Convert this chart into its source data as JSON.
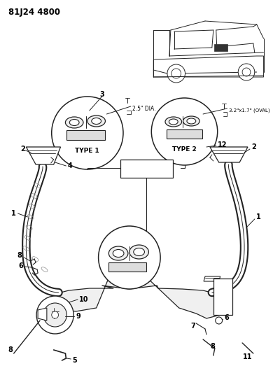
{
  "header": "81J24 4800",
  "bg_color": "#ffffff",
  "line_color": "#222222",
  "text_color": "#000000",
  "fig_width": 4.0,
  "fig_height": 5.33,
  "dpi": 100,
  "type1_label": "TYPE 1",
  "type2_label": "TYPE 2",
  "dim1": "2.5\" DIA.",
  "dim2": "3.2\"x1.7\" (OVAL)"
}
